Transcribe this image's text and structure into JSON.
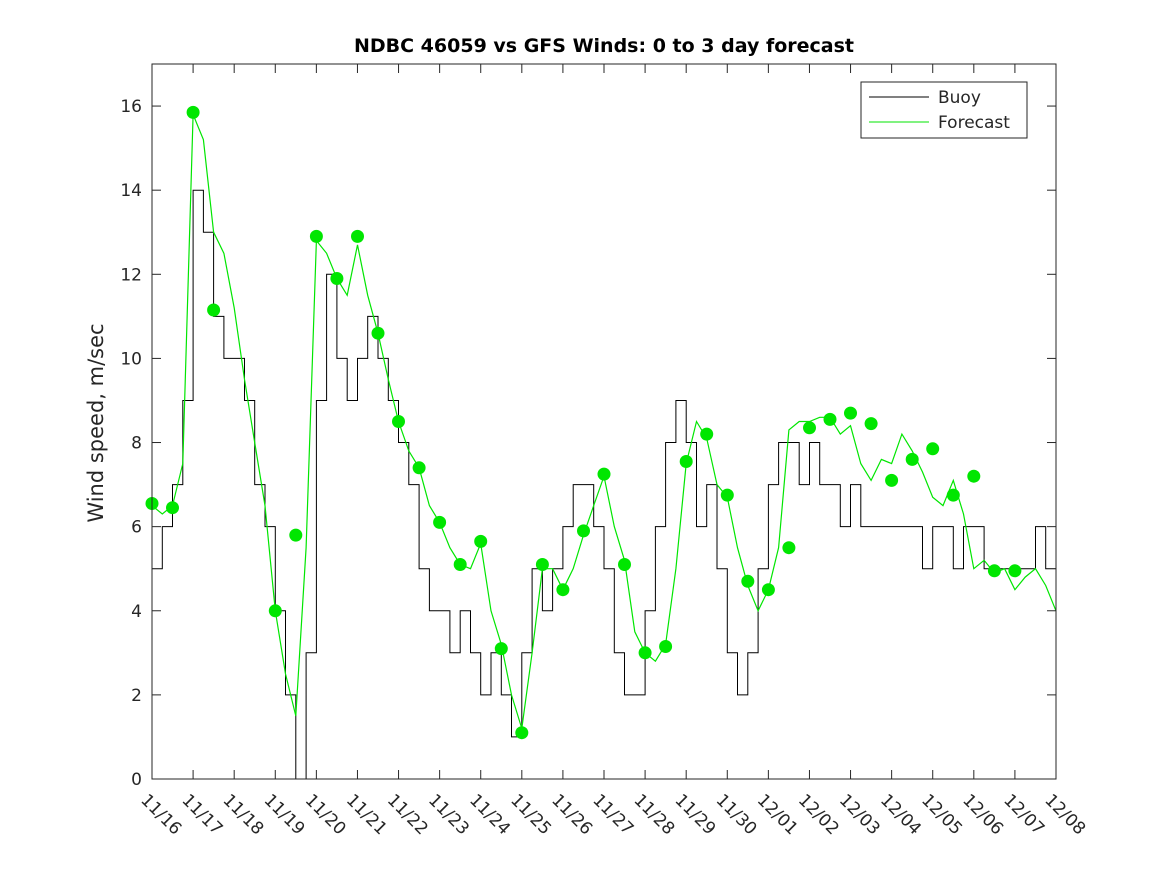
{
  "chart_data": {
    "type": "line",
    "title": "NDBC 46059 vs GFS Winds: 0 to 3 day forecast",
    "xlabel": "",
    "ylabel": "Wind speed, m/sec",
    "xlim": [
      "11/16",
      "12/08"
    ],
    "ylim": [
      0,
      17
    ],
    "x_tick_labels": [
      "11/16",
      "11/17",
      "11/18",
      "11/19",
      "11/20",
      "11/21",
      "11/22",
      "11/23",
      "11/24",
      "11/25",
      "11/26",
      "11/27",
      "11/28",
      "11/29",
      "11/30",
      "12/01",
      "12/02",
      "12/03",
      "12/04",
      "12/05",
      "12/06",
      "12/07",
      "12/08"
    ],
    "y_ticks": [
      0,
      2,
      4,
      6,
      8,
      10,
      12,
      14,
      16
    ],
    "grid": false,
    "legend": {
      "position": "top-right",
      "entries": [
        "Buoy",
        "Forecast"
      ]
    },
    "colors": {
      "buoy": "#000000",
      "forecast": "#00e600",
      "analysis_marker": "#00e600"
    },
    "series": [
      {
        "name": "Buoy",
        "x": [
          0,
          0.25,
          0.5,
          0.75,
          1,
          1.25,
          1.5,
          1.75,
          2,
          2.25,
          2.5,
          2.75,
          3,
          3.25,
          3.5,
          3.75,
          4,
          4.25,
          4.5,
          4.75,
          5,
          5.25,
          5.5,
          5.75,
          6,
          6.25,
          6.5,
          6.75,
          7,
          7.25,
          7.5,
          7.75,
          8,
          8.25,
          8.5,
          8.75,
          9,
          9.25,
          9.5,
          9.75,
          10,
          10.25,
          10.5,
          10.75,
          11,
          11.25,
          11.5,
          11.75,
          12,
          12.25,
          12.5,
          12.75,
          13,
          13.25,
          13.5,
          13.75,
          14,
          14.25,
          14.5,
          14.75,
          15,
          15.25,
          15.5,
          15.75,
          16,
          16.25,
          16.5,
          16.75,
          17,
          17.25,
          17.5,
          17.75,
          18,
          18.25,
          18.5,
          18.75,
          19,
          19.25,
          19.5,
          19.75,
          20,
          20.25,
          20.5,
          20.75,
          21,
          21.25,
          21.5,
          21.75,
          22
        ],
        "values": [
          5,
          6,
          7,
          9,
          14,
          13,
          11,
          10,
          10,
          9,
          7,
          6,
          4,
          2,
          0,
          3,
          9,
          12,
          10,
          9,
          10,
          11,
          10,
          9,
          8,
          7,
          5,
          4,
          4,
          3,
          4,
          3,
          2,
          3,
          2,
          1,
          3,
          5,
          4,
          5,
          6,
          7,
          7,
          6,
          5,
          3,
          2,
          2,
          4,
          6,
          8,
          9,
          8,
          6,
          7,
          5,
          3,
          2,
          3,
          5,
          7,
          8,
          8,
          7,
          8,
          7,
          7,
          6,
          7,
          6,
          6,
          6,
          6,
          6,
          6,
          5,
          6,
          6,
          5,
          6,
          6,
          5,
          5,
          5,
          5,
          5,
          6,
          5,
          5
        ]
      },
      {
        "name": "Forecast",
        "x": [
          0,
          0.25,
          0.5,
          0.75,
          1,
          1.25,
          1.5,
          1.75,
          2,
          2.25,
          2.5,
          2.75,
          3,
          3.25,
          3.5,
          3.75,
          4,
          4.25,
          4.5,
          4.75,
          5,
          5.25,
          5.5,
          5.75,
          6,
          6.25,
          6.5,
          6.75,
          7,
          7.25,
          7.5,
          7.75,
          8,
          8.25,
          8.5,
          8.75,
          9,
          9.25,
          9.5,
          9.75,
          10,
          10.25,
          10.5,
          10.75,
          11,
          11.25,
          11.5,
          11.75,
          12,
          12.25,
          12.5,
          12.75,
          13,
          13.25,
          13.5,
          13.75,
          14,
          14.25,
          14.5,
          14.75,
          15,
          15.25,
          15.5,
          15.75,
          16,
          16.25,
          16.5,
          16.75,
          17,
          17.25,
          17.5,
          17.75,
          18,
          18.25,
          18.5,
          18.75,
          19,
          19.25,
          19.5,
          19.75,
          20,
          20.25,
          20.5,
          20.75,
          21,
          21.25,
          21.5,
          21.75,
          22
        ],
        "values": [
          6.5,
          6.3,
          6.5,
          7.5,
          15.8,
          15.2,
          13,
          12.5,
          11.2,
          9.5,
          8,
          6.5,
          4,
          2.5,
          1.5,
          5.5,
          12.8,
          12.5,
          11.9,
          11.5,
          12.7,
          11.5,
          10.6,
          9.5,
          8.5,
          7.8,
          7.4,
          6.5,
          6.1,
          5.5,
          5.1,
          5,
          5.6,
          4,
          3.2,
          2,
          1.2,
          3,
          5,
          5,
          4.5,
          5,
          5.8,
          6.5,
          7.2,
          6,
          5.2,
          3.5,
          3,
          2.8,
          3.2,
          5,
          7.5,
          8.5,
          8.1,
          7,
          6.7,
          5.5,
          4.6,
          4,
          4.5,
          5.5,
          8.3,
          8.5,
          8.5,
          8.6,
          8.6,
          8.2,
          8.4,
          7.5,
          7.1,
          7.6,
          7.5,
          8.2,
          7.8,
          7.3,
          6.7,
          6.5,
          7.1,
          6.3,
          5,
          5.2,
          4.9,
          5,
          4.5,
          4.8,
          5,
          4.6,
          4
        ]
      }
    ],
    "analysis_points": {
      "x": [
        0,
        0.5,
        1,
        1.5,
        3,
        3.5,
        4,
        4.5,
        5,
        5.5,
        6,
        6.5,
        7,
        7.5,
        8,
        8.5,
        9,
        9.5,
        10,
        10.5,
        11,
        11.5,
        12,
        12.5,
        13,
        13.5,
        14,
        14.5,
        15,
        15.5,
        16,
        16.5,
        17,
        17.5,
        18,
        18.5,
        19,
        19.5,
        20,
        20.5,
        21
      ],
      "values": [
        6.55,
        6.45,
        15.85,
        11.15,
        4,
        5.8,
        12.9,
        11.9,
        12.9,
        10.6,
        8.5,
        7.4,
        6.1,
        5.1,
        5.65,
        3.1,
        1.1,
        5.1,
        4.5,
        5.9,
        7.25,
        5.1,
        3.0,
        3.15,
        7.55,
        8.2,
        6.75,
        4.7,
        4.5,
        5.5,
        8.35,
        8.55,
        8.7,
        8.45,
        7.1,
        7.6,
        7.85,
        6.75,
        7.2,
        4.95,
        4.95
      ]
    }
  }
}
